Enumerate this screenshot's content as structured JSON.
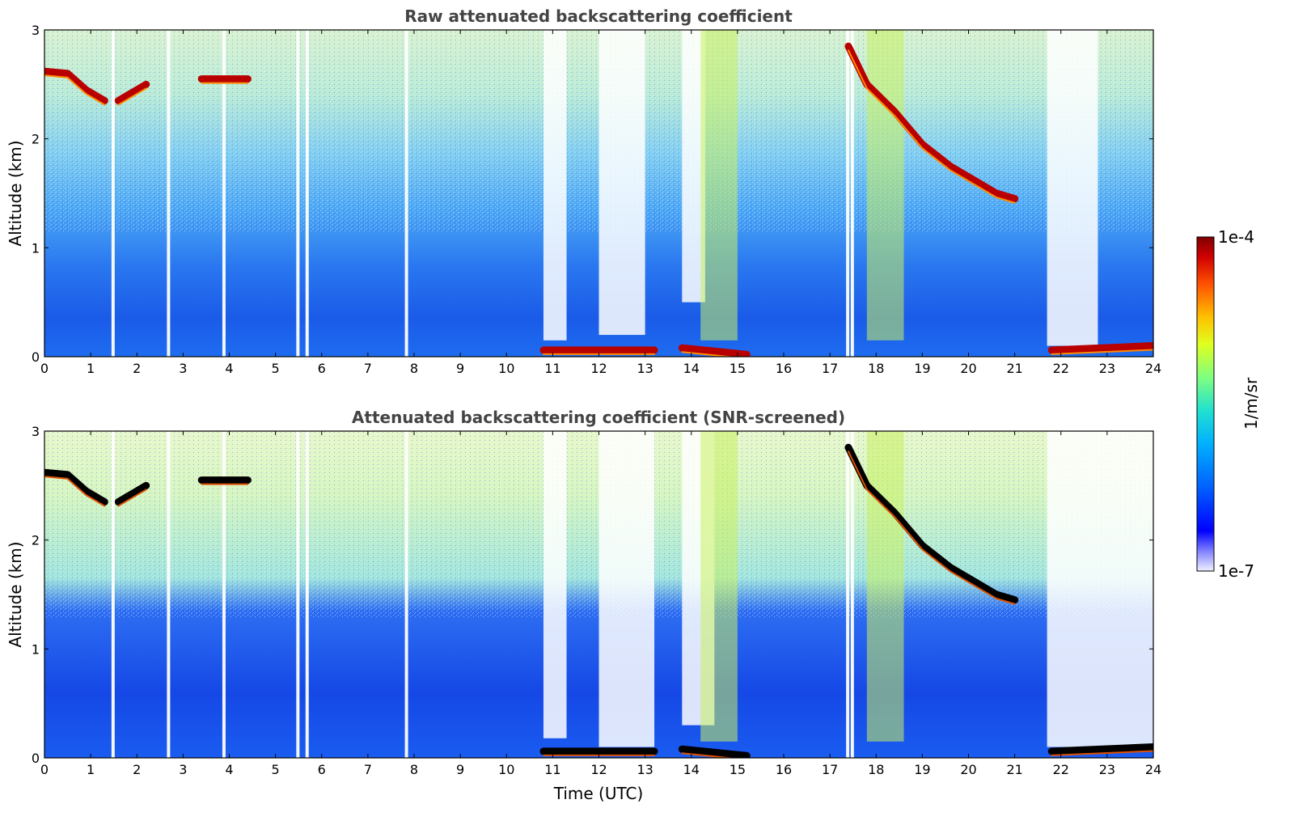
{
  "chart_data": [
    {
      "type": "heatmap",
      "title": "Raw attenuated backscattering coefficient",
      "xlabel": "",
      "ylabel": "Altitude (km)",
      "xlim": [
        0,
        24
      ],
      "ylim": [
        0,
        3
      ],
      "xticks": [
        "0",
        "1",
        "2",
        "3",
        "4",
        "5",
        "6",
        "7",
        "8",
        "9",
        "10",
        "11",
        "12",
        "13",
        "14",
        "15",
        "16",
        "17",
        "18",
        "19",
        "20",
        "21",
        "22",
        "23",
        "24"
      ],
      "yticks": [
        "0",
        "1",
        "2",
        "3"
      ],
      "color_scale": {
        "min": "1e-7",
        "max": "1e-4",
        "unit": "1/m/sr"
      },
      "features": [
        {
          "name": "cloud layer",
          "segments": [
            [
              0.0,
              2.62
            ],
            [
              0.5,
              2.6
            ],
            [
              0.9,
              2.45
            ],
            [
              1.3,
              2.35
            ]
          ]
        },
        {
          "name": "cloud layer",
          "segments": [
            [
              1.6,
              2.35
            ],
            [
              2.0,
              2.45
            ],
            [
              2.2,
              2.5
            ]
          ]
        },
        {
          "name": "cloud layer",
          "segments": [
            [
              3.4,
              2.55
            ],
            [
              3.8,
              2.55
            ],
            [
              4.4,
              2.55
            ]
          ]
        },
        {
          "name": "descending cloud",
          "segments": [
            [
              17.4,
              2.85
            ],
            [
              17.8,
              2.5
            ],
            [
              18.4,
              2.25
            ],
            [
              19.0,
              1.95
            ],
            [
              19.6,
              1.75
            ],
            [
              20.2,
              1.6
            ],
            [
              20.6,
              1.5
            ],
            [
              21.0,
              1.45
            ]
          ]
        },
        {
          "name": "surface layer",
          "segments": [
            [
              10.8,
              0.06
            ],
            [
              13.2,
              0.06
            ]
          ]
        },
        {
          "name": "surface layer",
          "segments": [
            [
              13.8,
              0.08
            ],
            [
              15.2,
              0.02
            ]
          ]
        },
        {
          "name": "surface layer",
          "segments": [
            [
              21.8,
              0.06
            ],
            [
              24.0,
              0.1
            ]
          ]
        }
      ]
    },
    {
      "type": "heatmap",
      "title": "Attenuated backscattering coefficient (SNR-screened)",
      "xlabel": "Time (UTC)",
      "ylabel": "Altitude (km)",
      "xlim": [
        0,
        24
      ],
      "ylim": [
        0,
        3
      ],
      "xticks": [
        "0",
        "1",
        "2",
        "3",
        "4",
        "5",
        "6",
        "7",
        "8",
        "9",
        "10",
        "11",
        "12",
        "13",
        "14",
        "15",
        "16",
        "17",
        "18",
        "19",
        "20",
        "21",
        "22",
        "23",
        "24"
      ],
      "yticks": [
        "0",
        "1",
        "2",
        "3"
      ],
      "color_scale": {
        "min": "1e-7",
        "max": "1e-4",
        "unit": "1/m/sr"
      },
      "features": [
        {
          "name": "cloud layer",
          "segments": [
            [
              0.0,
              2.62
            ],
            [
              0.5,
              2.6
            ],
            [
              0.9,
              2.45
            ],
            [
              1.3,
              2.35
            ]
          ]
        },
        {
          "name": "cloud layer",
          "segments": [
            [
              1.6,
              2.35
            ],
            [
              2.0,
              2.45
            ],
            [
              2.2,
              2.5
            ]
          ]
        },
        {
          "name": "cloud layer",
          "segments": [
            [
              3.4,
              2.55
            ],
            [
              3.8,
              2.55
            ],
            [
              4.4,
              2.55
            ]
          ]
        },
        {
          "name": "descending cloud",
          "segments": [
            [
              17.4,
              2.85
            ],
            [
              17.8,
              2.5
            ],
            [
              18.4,
              2.25
            ],
            [
              19.0,
              1.95
            ],
            [
              19.6,
              1.75
            ],
            [
              20.2,
              1.6
            ],
            [
              20.6,
              1.5
            ],
            [
              21.0,
              1.45
            ]
          ]
        },
        {
          "name": "surface layer",
          "segments": [
            [
              10.8,
              0.06
            ],
            [
              13.2,
              0.06
            ]
          ]
        },
        {
          "name": "surface layer",
          "segments": [
            [
              13.8,
              0.08
            ],
            [
              15.2,
              0.02
            ]
          ]
        },
        {
          "name": "surface layer",
          "segments": [
            [
              21.8,
              0.06
            ],
            [
              24.0,
              0.1
            ]
          ]
        }
      ]
    }
  ],
  "colorbar": {
    "top_label": "1e-4",
    "bottom_label": "1e-7",
    "unit_label": "1/m/sr",
    "colors": [
      "#0000ff",
      "#0040ff",
      "#0090ff",
      "#00d0ff",
      "#40e0c0",
      "#90ff70",
      "#e0ff30",
      "#ffd000",
      "#ff8000",
      "#ff2000",
      "#a00000"
    ]
  }
}
